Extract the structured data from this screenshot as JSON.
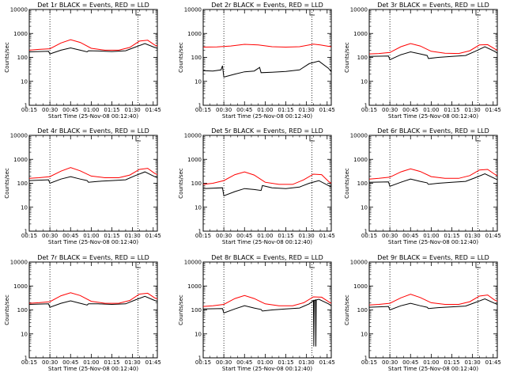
{
  "figure": {
    "background": "#ffffff",
    "event_color": "#000000",
    "lld_color": "#ff0000"
  },
  "chart_data": [
    {
      "type": "line",
      "title": "Det 1r BLACK = Events, RED = LLD",
      "xlabel": "Start Time (25-Nov-08 00:12:40)",
      "ylabel": "Counts/sec",
      "log_y": true,
      "ylim": [
        1,
        10000
      ],
      "xlim_minutes": [
        15,
        108
      ],
      "x_ticks": [
        "00:15",
        "00:30",
        "00:45",
        "01:00",
        "01:15",
        "01:30",
        "01:45"
      ],
      "y_ticks": [
        "1",
        "10",
        "100",
        "1000",
        "10000"
      ],
      "vlines_minutes": [
        30,
        94
      ],
      "series": [
        {
          "name": "Events",
          "color": "#000000",
          "x": [
            15,
            29,
            30,
            38,
            45,
            52,
            57,
            58,
            65,
            75,
            85,
            92,
            99,
            106,
            108
          ],
          "y": [
            170,
            180,
            140,
            200,
            250,
            200,
            170,
            190,
            185,
            175,
            190,
            270,
            380,
            260,
            240
          ]
        },
        {
          "name": "LLD",
          "color": "#ff0000",
          "x": [
            15,
            22,
            30,
            38,
            45,
            52,
            60,
            70,
            80,
            88,
            95,
            101,
            106,
            108
          ],
          "y": [
            200,
            215,
            230,
            400,
            550,
            420,
            240,
            200,
            200,
            260,
            480,
            520,
            330,
            300
          ]
        }
      ]
    },
    {
      "type": "line",
      "title": "Det 2r BLACK = Events, RED = LLD",
      "xlabel": "Start Time (25-Nov-08 00:12:40)",
      "ylabel": "Counts/sec",
      "log_y": true,
      "ylim": [
        1,
        10000
      ],
      "xlim_minutes": [
        15,
        108
      ],
      "x_ticks": [
        "00:15",
        "00:30",
        "00:45",
        "01:00",
        "01:15",
        "01:30",
        "01:45"
      ],
      "y_ticks": [
        "1",
        "10",
        "100",
        "1000",
        "10000"
      ],
      "vlines_minutes": [
        30,
        94
      ],
      "series": [
        {
          "name": "Events",
          "color": "#000000",
          "x": [
            15,
            22,
            28,
            29,
            30,
            38,
            45,
            52,
            56,
            57,
            65,
            75,
            85,
            92,
            99,
            106,
            108
          ],
          "y": [
            28,
            27,
            30,
            45,
            15,
            20,
            25,
            27,
            38,
            23,
            24,
            26,
            30,
            55,
            70,
            35,
            25
          ]
        },
        {
          "name": "LLD",
          "color": "#ff0000",
          "x": [
            15,
            25,
            35,
            45,
            55,
            65,
            75,
            85,
            95,
            100,
            106,
            108
          ],
          "y": [
            270,
            275,
            300,
            350,
            330,
            280,
            270,
            280,
            360,
            330,
            290,
            280
          ]
        }
      ]
    },
    {
      "type": "line",
      "title": "Det 3r BLACK = Events, RED = LLD",
      "xlabel": "Start Time (25-Nov-08 00:12:40)",
      "ylabel": "Counts/sec",
      "log_y": true,
      "ylim": [
        1,
        10000
      ],
      "xlim_minutes": [
        15,
        108
      ],
      "x_ticks": [
        "00:15",
        "00:30",
        "00:45",
        "01:00",
        "01:15",
        "01:30",
        "01:45"
      ],
      "y_ticks": [
        "1",
        "10",
        "100",
        "1000",
        "10000"
      ],
      "vlines_minutes": [
        30,
        94
      ],
      "series": [
        {
          "name": "Events",
          "color": "#000000",
          "x": [
            15,
            29,
            30,
            38,
            45,
            52,
            57,
            58,
            65,
            75,
            85,
            92,
            99,
            106,
            108
          ],
          "y": [
            110,
            115,
            80,
            130,
            170,
            140,
            120,
            90,
            100,
            110,
            120,
            180,
            280,
            180,
            150
          ]
        },
        {
          "name": "LLD",
          "color": "#ff0000",
          "x": [
            15,
            22,
            30,
            38,
            45,
            52,
            60,
            70,
            80,
            88,
            95,
            101,
            106,
            108
          ],
          "y": [
            140,
            145,
            160,
            280,
            380,
            300,
            180,
            150,
            145,
            190,
            330,
            340,
            230,
            200
          ]
        }
      ]
    },
    {
      "type": "line",
      "title": "Det 4r BLACK = Events, RED = LLD",
      "xlabel": "Start Time (25-Nov-08 00:12:40)",
      "ylabel": "Counts/sec",
      "log_y": true,
      "ylim": [
        1,
        10000
      ],
      "xlim_minutes": [
        15,
        108
      ],
      "x_ticks": [
        "00:15",
        "00:30",
        "00:45",
        "01:00",
        "01:15",
        "01:30",
        "01:45"
      ],
      "y_ticks": [
        "1",
        "10",
        "100",
        "1000",
        "10000"
      ],
      "vlines_minutes": [
        30,
        94
      ],
      "series": [
        {
          "name": "Events",
          "color": "#000000",
          "x": [
            15,
            29,
            30,
            38,
            45,
            52,
            57,
            58,
            65,
            75,
            85,
            92,
            99,
            106,
            108
          ],
          "y": [
            130,
            140,
            100,
            150,
            190,
            150,
            130,
            110,
            120,
            130,
            140,
            210,
            300,
            190,
            170
          ]
        },
        {
          "name": "LLD",
          "color": "#ff0000",
          "x": [
            15,
            22,
            30,
            38,
            45,
            52,
            60,
            70,
            80,
            88,
            95,
            101,
            106,
            108
          ],
          "y": [
            160,
            170,
            190,
            320,
            450,
            330,
            200,
            170,
            170,
            220,
            380,
            420,
            260,
            230
          ]
        }
      ]
    },
    {
      "type": "line",
      "title": "Det 5r BLACK = Events, RED = LLD",
      "xlabel": "Start Time (25-Nov-08 00:12:40)",
      "ylabel": "Counts/sec",
      "log_y": true,
      "ylim": [
        1,
        10000
      ],
      "xlim_minutes": [
        15,
        108
      ],
      "x_ticks": [
        "00:15",
        "00:30",
        "00:45",
        "01:00",
        "01:15",
        "01:30",
        "01:45"
      ],
      "y_ticks": [
        "1",
        "10",
        "100",
        "1000",
        "10000"
      ],
      "vlines_minutes": [
        30,
        94
      ],
      "series": [
        {
          "name": "Events",
          "color": "#000000",
          "x": [
            15,
            29,
            30,
            38,
            45,
            52,
            57,
            58,
            65,
            75,
            85,
            92,
            99,
            106,
            108
          ],
          "y": [
            60,
            65,
            30,
            45,
            60,
            55,
            50,
            80,
            65,
            60,
            70,
            100,
            130,
            80,
            70
          ]
        },
        {
          "name": "LLD",
          "color": "#ff0000",
          "x": [
            15,
            22,
            30,
            38,
            45,
            52,
            60,
            70,
            80,
            88,
            95,
            101,
            106,
            108
          ],
          "y": [
            90,
            100,
            130,
            230,
            300,
            220,
            110,
            90,
            90,
            140,
            240,
            230,
            120,
            100
          ]
        }
      ]
    },
    {
      "type": "line",
      "title": "Det 6r BLACK = Events, RED = LLD",
      "xlabel": "Start Time (25-Nov-08 00:12:40)",
      "ylabel": "Counts/sec",
      "log_y": true,
      "ylim": [
        1,
        10000
      ],
      "xlim_minutes": [
        15,
        108
      ],
      "x_ticks": [
        "00:15",
        "00:30",
        "00:45",
        "01:00",
        "01:15",
        "01:30",
        "01:45"
      ],
      "y_ticks": [
        "1",
        "10",
        "100",
        "1000",
        "10000"
      ],
      "vlines_minutes": [
        30,
        94
      ],
      "series": [
        {
          "name": "Events",
          "color": "#000000",
          "x": [
            15,
            29,
            30,
            38,
            45,
            52,
            57,
            58,
            65,
            75,
            85,
            92,
            99,
            106,
            108
          ],
          "y": [
            110,
            115,
            75,
            110,
            150,
            120,
            105,
            90,
            100,
            110,
            120,
            170,
            250,
            160,
            140
          ]
        },
        {
          "name": "LLD",
          "color": "#ff0000",
          "x": [
            15,
            22,
            30,
            38,
            45,
            52,
            60,
            70,
            80,
            88,
            95,
            101,
            106,
            108
          ],
          "y": [
            150,
            160,
            180,
            300,
            400,
            310,
            190,
            160,
            160,
            210,
            360,
            380,
            240,
            210
          ]
        }
      ]
    },
    {
      "type": "line",
      "title": "Det 7r BLACK = Events, RED = LLD",
      "xlabel": "Start Time (25-Nov-08 00:12:40)",
      "ylabel": "Counts/sec",
      "log_y": true,
      "ylim": [
        1,
        10000
      ],
      "xlim_minutes": [
        15,
        108
      ],
      "x_ticks": [
        "00:15",
        "00:30",
        "00:45",
        "01:00",
        "01:15",
        "01:30",
        "01:45"
      ],
      "y_ticks": [
        "1",
        "10",
        "100",
        "1000",
        "10000"
      ],
      "vlines_minutes": [
        30,
        94
      ],
      "series": [
        {
          "name": "Events",
          "color": "#000000",
          "x": [
            15,
            29,
            30,
            38,
            45,
            52,
            57,
            58,
            65,
            75,
            85,
            92,
            99,
            106,
            108
          ],
          "y": [
            170,
            180,
            130,
            190,
            240,
            190,
            160,
            180,
            180,
            170,
            180,
            260,
            370,
            250,
            230
          ]
        },
        {
          "name": "LLD",
          "color": "#ff0000",
          "x": [
            15,
            22,
            30,
            38,
            45,
            52,
            60,
            70,
            80,
            88,
            95,
            101,
            106,
            108
          ],
          "y": [
            190,
            200,
            220,
            390,
            520,
            400,
            230,
            190,
            190,
            250,
            460,
            500,
            320,
            290
          ]
        }
      ]
    },
    {
      "type": "line",
      "title": "Det 8r BLACK = Events, RED = LLD",
      "xlabel": "Start Time (25-Nov-08 00:12:40)",
      "ylabel": "Counts/sec",
      "log_y": true,
      "ylim": [
        1,
        10000
      ],
      "xlim_minutes": [
        15,
        108
      ],
      "x_ticks": [
        "00:15",
        "00:30",
        "00:45",
        "01:00",
        "01:15",
        "01:30",
        "01:45"
      ],
      "y_ticks": [
        "1",
        "10",
        "100",
        "1000",
        "10000"
      ],
      "vlines_minutes": [
        30,
        94
      ],
      "series": [
        {
          "name": "Events",
          "color": "#000000",
          "x": [
            15,
            29,
            30,
            38,
            45,
            52,
            57,
            58,
            65,
            75,
            85,
            92,
            95,
            95.3,
            95.6,
            96.5,
            96.8,
            97.1,
            99,
            106,
            108
          ],
          "y": [
            110,
            115,
            75,
            110,
            150,
            120,
            105,
            90,
            100,
            110,
            120,
            180,
            250,
            3,
            250,
            260,
            3,
            260,
            280,
            180,
            150
          ]
        },
        {
          "name": "LLD",
          "color": "#ff0000",
          "x": [
            15,
            22,
            30,
            38,
            45,
            52,
            60,
            70,
            80,
            88,
            95,
            101,
            106,
            108
          ],
          "y": [
            140,
            150,
            170,
            300,
            400,
            300,
            180,
            150,
            150,
            200,
            350,
            340,
            220,
            190
          ]
        }
      ]
    },
    {
      "type": "line",
      "title": "Det 9r BLACK = Events, RED = LLD",
      "xlabel": "Start Time (25-Nov-08 00:12:40)",
      "ylabel": "Counts/sec",
      "log_y": true,
      "ylim": [
        1,
        10000
      ],
      "xlim_minutes": [
        15,
        108
      ],
      "x_ticks": [
        "00:15",
        "00:30",
        "00:45",
        "01:00",
        "01:15",
        "01:30",
        "01:45"
      ],
      "y_ticks": [
        "1",
        "10",
        "100",
        "1000",
        "10000"
      ],
      "vlines_minutes": [
        30,
        94
      ],
      "series": [
        {
          "name": "Events",
          "color": "#000000",
          "x": [
            15,
            29,
            30,
            38,
            45,
            52,
            57,
            58,
            65,
            75,
            85,
            92,
            99,
            106,
            108
          ],
          "y": [
            130,
            140,
            100,
            150,
            190,
            150,
            130,
            115,
            125,
            135,
            145,
            205,
            290,
            190,
            170
          ]
        },
        {
          "name": "LLD",
          "color": "#ff0000",
          "x": [
            15,
            22,
            30,
            38,
            45,
            52,
            60,
            70,
            80,
            88,
            95,
            101,
            106,
            108
          ],
          "y": [
            160,
            170,
            190,
            320,
            450,
            330,
            200,
            170,
            170,
            220,
            380,
            420,
            260,
            230
          ]
        }
      ]
    }
  ]
}
